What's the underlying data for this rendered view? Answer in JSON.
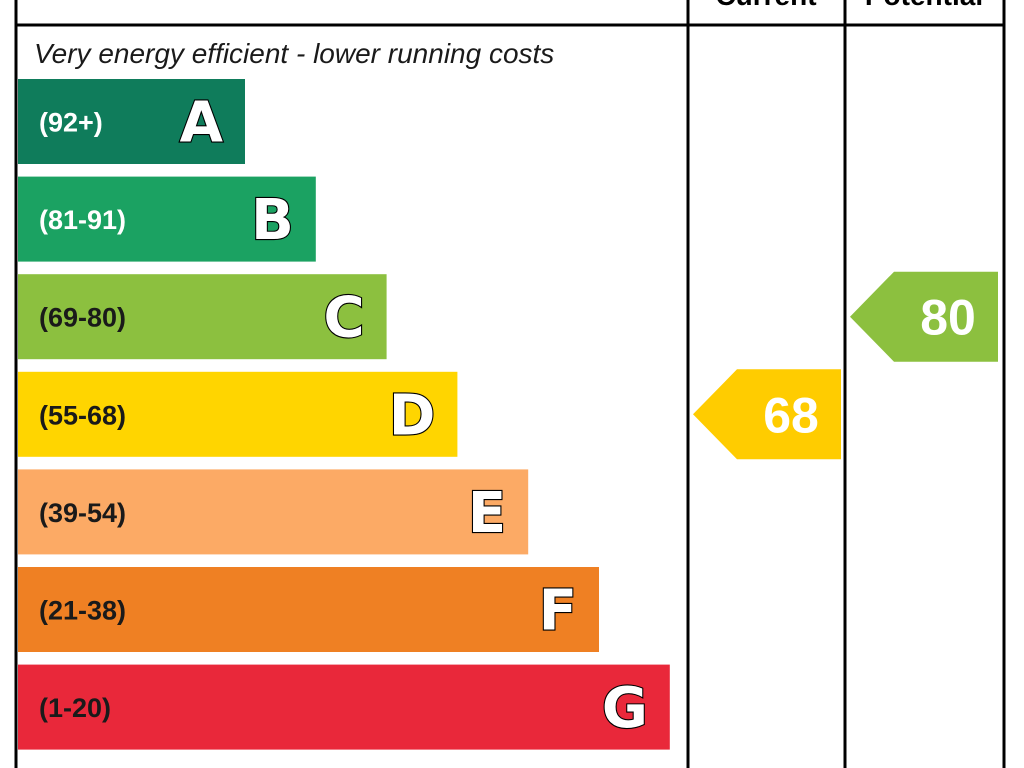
{
  "chart_data": {
    "type": "bar",
    "top_caption": "Very energy efficient - lower running costs",
    "columns": [
      "Current",
      "Potential"
    ],
    "bands": [
      {
        "letter": "A",
        "range": "(92+)",
        "min": 92,
        "max": 100,
        "color": "#0f7c5b",
        "range_color": "#ffffff"
      },
      {
        "letter": "B",
        "range": "(81-91)",
        "min": 81,
        "max": 91,
        "color": "#1ba262",
        "range_color": "#ffffff"
      },
      {
        "letter": "C",
        "range": "(69-80)",
        "min": 69,
        "max": 80,
        "color": "#8cc03f",
        "range_color": "#1a1a1a"
      },
      {
        "letter": "D",
        "range": "(55-68)",
        "min": 55,
        "max": 68,
        "color": "#ffd500",
        "range_color": "#1a1a1a"
      },
      {
        "letter": "E",
        "range": "(39-54)",
        "min": 39,
        "max": 54,
        "color": "#fcaa65",
        "range_color": "#1a1a1a"
      },
      {
        "letter": "F",
        "range": "(21-38)",
        "min": 21,
        "max": 38,
        "color": "#ef8023",
        "range_color": "#1a1a1a"
      },
      {
        "letter": "G",
        "range": "(1-20)",
        "min": 1,
        "max": 20,
        "color": "#e9283a",
        "range_color": "#1a1a1a"
      }
    ],
    "ratings": [
      {
        "column": "Current",
        "value": 68,
        "band": "D",
        "color": "#ffcc00"
      },
      {
        "column": "Potential",
        "value": 80,
        "band": "C",
        "color": "#8cc03f"
      }
    ]
  }
}
